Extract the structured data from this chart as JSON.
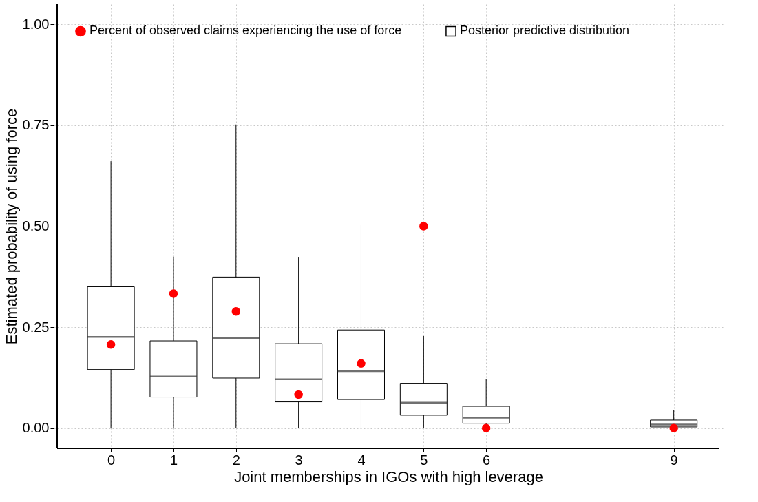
{
  "chart_data": {
    "type": "box",
    "xlabel": "Joint memberships in IGOs with high leverage",
    "ylabel": "Estimated probability of using force",
    "x": [
      0,
      1,
      2,
      3,
      4,
      5,
      6,
      9
    ],
    "xlim": [
      -0.86,
      9.73
    ],
    "ylim": [
      -0.05,
      1.05
    ],
    "xticks": [
      0,
      1,
      2,
      3,
      4,
      5,
      6,
      9
    ],
    "yticks": [
      {
        "value": 0,
        "label": "0.00"
      },
      {
        "value": 0.25,
        "label": "0.25"
      },
      {
        "value": 0.5,
        "label": "0.50"
      },
      {
        "value": 0.75,
        "label": "0.75"
      },
      {
        "value": 1,
        "label": "1.00"
      }
    ],
    "grid": true,
    "legend": "top left",
    "series": [
      {
        "name": "Percent of observed claims experiencing the use of force",
        "type": "scatter",
        "color": "#ff0000",
        "marker": "circle",
        "values": [
          0.207,
          0.333,
          0.289,
          0.083,
          0.16,
          0.5,
          0,
          0
        ]
      },
      {
        "name": "Posterior predictive distribution",
        "color": "#ffffff",
        "boxes": [
          {
            "low": 0,
            "q1": 0.145,
            "median": 0.226,
            "q3": 0.35,
            "high": 0.661
          },
          {
            "low": 0,
            "q1": 0.077,
            "median": 0.128,
            "q3": 0.216,
            "high": 0.424
          },
          {
            "low": 0,
            "q1": 0.124,
            "median": 0.223,
            "q3": 0.374,
            "high": 0.752
          },
          {
            "low": 0,
            "q1": 0.065,
            "median": 0.121,
            "q3": 0.209,
            "high": 0.424
          },
          {
            "low": 0,
            "q1": 0.071,
            "median": 0.141,
            "q3": 0.243,
            "high": 0.503
          },
          {
            "low": 0,
            "q1": 0.032,
            "median": 0.063,
            "q3": 0.111,
            "high": 0.228
          },
          {
            "low": 0,
            "q1": 0.012,
            "median": 0.026,
            "q3": 0.054,
            "high": 0.122
          },
          {
            "low": 0,
            "q1": 0.003,
            "median": 0.009,
            "q3": 0.02,
            "high": 0.044
          }
        ]
      }
    ]
  }
}
